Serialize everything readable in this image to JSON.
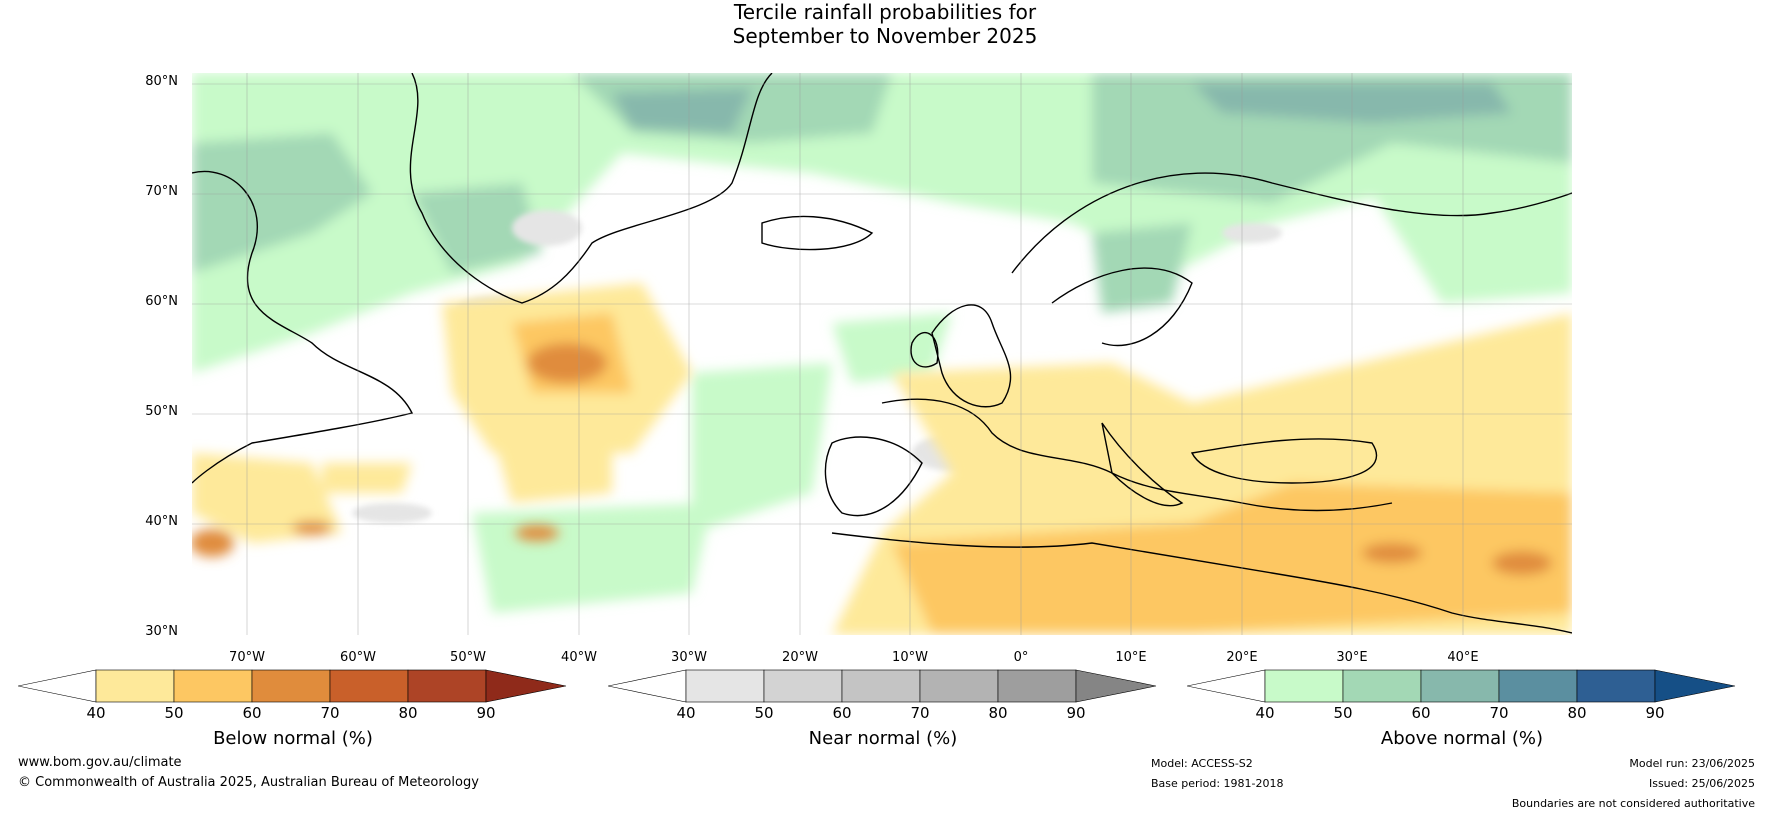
{
  "title_line1": "Tercile rainfall probabilities for",
  "title_line2": "September to November 2025",
  "lat_labels": [
    "80°N",
    "70°N",
    "60°N",
    "50°N",
    "40°N",
    "30°N"
  ],
  "lon_labels": [
    "70°W",
    "60°W",
    "50°W",
    "40°W",
    "30°W",
    "20°W",
    "10°W",
    "0°",
    "10°E",
    "20°E",
    "30°E",
    "40°E"
  ],
  "colorbars": [
    {
      "label": "Below normal (%)",
      "ticks": [
        "40",
        "50",
        "60",
        "70",
        "80",
        "90"
      ],
      "colors": [
        "#ffffff",
        "#fee99a",
        "#fdc762",
        "#e08c3c",
        "#c9602a",
        "#ad4426",
        "#8f2a1a"
      ]
    },
    {
      "label": "Near normal (%)",
      "ticks": [
        "40",
        "50",
        "60",
        "70",
        "80",
        "90"
      ],
      "colors": [
        "#ffffff",
        "#e5e5e5",
        "#d3d3d3",
        "#c4c4c4",
        "#b3b3b3",
        "#9e9e9e",
        "#858585"
      ]
    },
    {
      "label": "Above normal (%)",
      "ticks": [
        "40",
        "50",
        "60",
        "70",
        "80",
        "90"
      ],
      "colors": [
        "#ffffff",
        "#c8fac9",
        "#a3d8b5",
        "#87b8ac",
        "#5b8fa0",
        "#2e5f93",
        "#154f86"
      ]
    }
  ],
  "footer": {
    "website": "www.bom.gov.au/climate",
    "copyright": "© Commonwealth of Australia 2025, Australian Bureau of Meteorology",
    "model": "Model: ACCESS-S2",
    "base_period": "Base period: 1981-2018",
    "model_run": "Model run: 23/06/2025",
    "issued": "Issued: 25/06/2025",
    "disclaimer": "Boundaries are not considered authoritative"
  }
}
